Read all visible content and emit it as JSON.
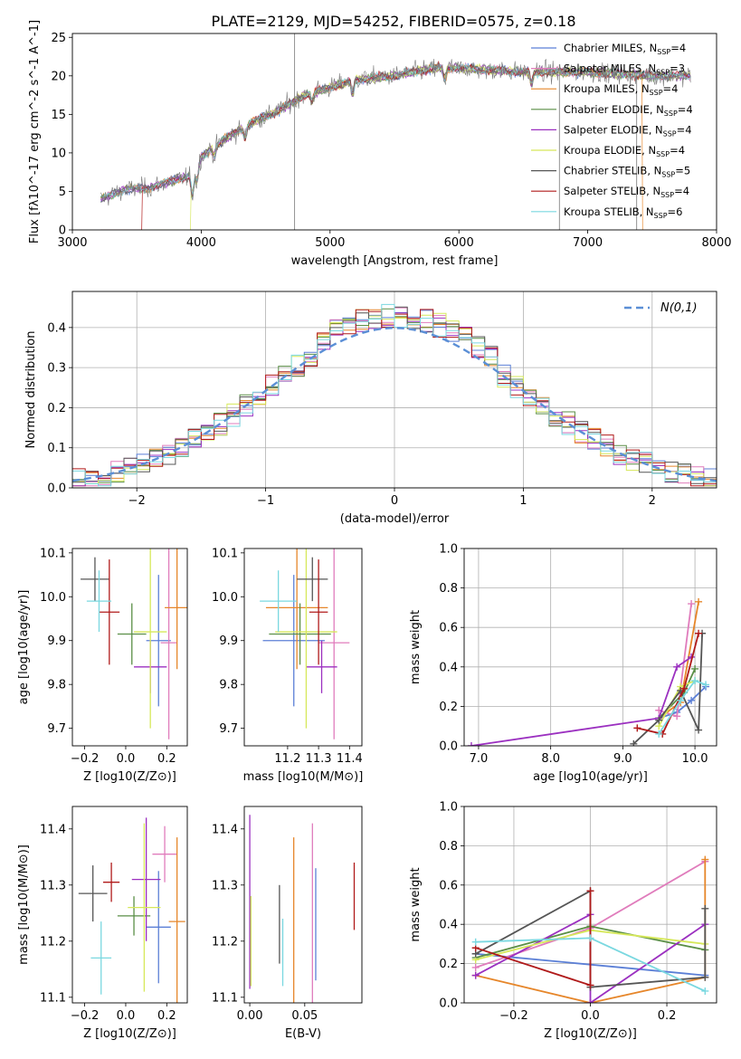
{
  "figure_title": "PLATE=2129, MJD=54252, FIBERID=0575, z=0.18",
  "colors": {
    "Chabrier MILES": "#5b7fd6",
    "Salpeter MILES": "#e07cbc",
    "Kroupa MILES": "#e6862a",
    "Chabrier ELODIE": "#5a8e46",
    "Salpeter ELODIE": "#9b30c0",
    "Kroupa ELODIE": "#d6e85a",
    "Chabrier STELIB": "#555555",
    "Salpeter STELIB": "#b01a1a",
    "Kroupa STELIB": "#7ad8e0"
  },
  "chart_data": [
    {
      "id": "spectrum",
      "type": "line",
      "xlabel": "wavelength [Angstrom, rest frame]",
      "ylabel": "Flux [fλ10^-17 erg cm^-2 s^-1 A^-1]",
      "xlim": [
        3000,
        8000
      ],
      "ylim": [
        0,
        25.5
      ],
      "xticks": [
        "3000",
        "4000",
        "5000",
        "6000",
        "7000",
        "8000"
      ],
      "yticks": [
        "0",
        "5",
        "10",
        "15",
        "20",
        "25"
      ],
      "legend_position": "right",
      "legend": [
        {
          "name": "Chabrier MILES",
          "nssp": "4"
        },
        {
          "name": "Salpeter MILES",
          "nssp": "3"
        },
        {
          "name": "Kroupa MILES",
          "nssp": "4"
        },
        {
          "name": "Chabrier ELODIE",
          "nssp": "4"
        },
        {
          "name": "Salpeter ELODIE",
          "nssp": "4"
        },
        {
          "name": "Kroupa ELODIE",
          "nssp": "4"
        },
        {
          "name": "Chabrier STELIB",
          "nssp": "5"
        },
        {
          "name": "Salpeter STELIB",
          "nssp": "4"
        },
        {
          "name": "Kroupa STELIB",
          "nssp": "6"
        }
      ],
      "data_range": [
        3220,
        7800
      ],
      "continuum": [
        [
          3220,
          4.0
        ],
        [
          3400,
          5.2
        ],
        [
          3600,
          5.5
        ],
        [
          3800,
          6.5
        ],
        [
          3930,
          7.0
        ],
        [
          4000,
          9.5
        ],
        [
          4200,
          12.0
        ],
        [
          4400,
          14.0
        ],
        [
          4600,
          15.5
        ],
        [
          4800,
          17.5
        ],
        [
          5000,
          18.5
        ],
        [
          5200,
          19.5
        ],
        [
          5500,
          20.0
        ],
        [
          5800,
          21.0
        ],
        [
          6000,
          21.0
        ],
        [
          6500,
          20.5
        ],
        [
          7000,
          20.5
        ],
        [
          7500,
          20.0
        ],
        [
          7800,
          20.0
        ]
      ],
      "model_edges": [
        {
          "name": "Salpeter STELIB",
          "from": 3540
        },
        {
          "name": "Kroupa ELODIE",
          "from": 3920
        },
        {
          "name": "Kroupa MILES",
          "to": 7420
        }
      ],
      "spikes": [
        [
          4725,
          0,
          25.5
        ],
        [
          6780,
          0,
          21.5
        ],
        [
          7380,
          0,
          20.0
        ]
      ]
    },
    {
      "id": "residuals",
      "type": "histogram",
      "xlabel": "(data-model)/error",
      "ylabel": "Normed distribution",
      "xlim": [
        -2.5,
        2.5
      ],
      "ylim": [
        0,
        0.49
      ],
      "xticks": [
        "−2",
        "−1",
        "0",
        "1",
        "2"
      ],
      "yticks": [
        "0.0",
        "0.1",
        "0.2",
        "0.3",
        "0.4"
      ],
      "grid": true,
      "reference": {
        "name": "N(0,1)",
        "style": "dashed",
        "color": "#5b8fd6"
      },
      "bin_width": 0.1,
      "legend_position": "top-right"
    },
    {
      "id": "age_vs_z",
      "type": "scatter",
      "xlabel": "Z [log10(Z/Z⊙)]",
      "ylabel": "age  [log10(age/yr)]",
      "xlim": [
        -0.26,
        0.3
      ],
      "ylim": [
        9.66,
        10.11
      ],
      "xticks": [
        -0.2,
        0.0,
        0.2
      ],
      "yticks": [
        9.7,
        9.8,
        9.9,
        10.0,
        10.1
      ],
      "points": [
        {
          "model": "Chabrier MILES",
          "x": 0.16,
          "xerr": 0.06,
          "y": 9.9,
          "yerr": 0.15
        },
        {
          "model": "Salpeter MILES",
          "x": 0.21,
          "xerr": 0.04,
          "y": 9.895,
          "yerr": 0.22
        },
        {
          "model": "Kroupa MILES",
          "x": 0.25,
          "xerr": 0.06,
          "y": 9.975,
          "yerr": 0.14
        },
        {
          "model": "Chabrier ELODIE",
          "x": 0.03,
          "xerr": 0.07,
          "y": 9.915,
          "yerr": 0.07
        },
        {
          "model": "Salpeter ELODIE",
          "x": 0.12,
          "xerr": 0.08,
          "y": 9.84,
          "yerr": 0.06
        },
        {
          "model": "Kroupa ELODIE",
          "x": 0.12,
          "xerr": 0.08,
          "y": 9.92,
          "yerr": 0.22
        },
        {
          "model": "Chabrier STELIB",
          "x": -0.15,
          "xerr": 0.07,
          "y": 10.04,
          "yerr": 0.05
        },
        {
          "model": "Salpeter STELIB",
          "x": -0.08,
          "xerr": 0.05,
          "y": 9.965,
          "yerr": 0.12
        },
        {
          "model": "Kroupa STELIB",
          "x": -0.13,
          "xerr": 0.06,
          "y": 9.99,
          "yerr": 0.07
        }
      ]
    },
    {
      "id": "age_vs_mass",
      "type": "scatter",
      "xlabel": "mass [log10(M/M⊙)]",
      "ylabel": "",
      "xlim": [
        11.06,
        11.44
      ],
      "ylim": [
        9.66,
        10.11
      ],
      "xticks": [
        11.2,
        11.3,
        11.4
      ],
      "yticks": [
        9.7,
        9.8,
        9.9,
        10.0,
        10.1
      ],
      "points": [
        {
          "model": "Chabrier MILES",
          "x": 11.22,
          "xerr": 0.1,
          "y": 9.9,
          "yerr": 0.15
        },
        {
          "model": "Salpeter MILES",
          "x": 11.35,
          "xerr": 0.05,
          "y": 9.895,
          "yerr": 0.22
        },
        {
          "model": "Kroupa MILES",
          "x": 11.23,
          "xerr": 0.1,
          "y": 9.975,
          "yerr": 0.14
        },
        {
          "model": "Chabrier ELODIE",
          "x": 11.24,
          "xerr": 0.1,
          "y": 9.915,
          "yerr": 0.07
        },
        {
          "model": "Salpeter ELODIE",
          "x": 11.31,
          "xerr": 0.05,
          "y": 9.84,
          "yerr": 0.06
        },
        {
          "model": "Kroupa ELODIE",
          "x": 11.26,
          "xerr": 0.1,
          "y": 9.92,
          "yerr": 0.22
        },
        {
          "model": "Chabrier STELIB",
          "x": 11.28,
          "xerr": 0.05,
          "y": 10.04,
          "yerr": 0.05
        },
        {
          "model": "Salpeter STELIB",
          "x": 11.3,
          "xerr": 0.03,
          "y": 9.965,
          "yerr": 0.12
        },
        {
          "model": "Kroupa STELIB",
          "x": 11.17,
          "xerr": 0.06,
          "y": 9.99,
          "yerr": 0.07
        }
      ]
    },
    {
      "id": "weight_vs_age",
      "type": "line",
      "xlabel": "age  [log10(age/yr)]",
      "ylabel": "mass weight",
      "xlim": [
        6.8,
        10.3
      ],
      "ylim": [
        0,
        1.0
      ],
      "xticks": [
        7,
        8,
        9,
        10
      ],
      "yticks": [
        0.0,
        0.2,
        0.4,
        0.6,
        0.8,
        1.0
      ],
      "grid": true,
      "series": [
        {
          "model": "Chabrier MILES",
          "x": [
            9.5,
            9.75,
            9.95,
            10.15
          ],
          "y": [
            0.14,
            0.17,
            0.23,
            0.3
          ]
        },
        {
          "model": "Salpeter MILES",
          "x": [
            9.5,
            9.75,
            9.95
          ],
          "y": [
            0.18,
            0.15,
            0.72
          ]
        },
        {
          "model": "Kroupa MILES",
          "x": [
            9.5,
            9.8,
            10.05
          ],
          "y": [
            0.14,
            0.22,
            0.73
          ]
        },
        {
          "model": "Chabrier ELODIE",
          "x": [
            9.5,
            9.85,
            10.0
          ],
          "y": [
            0.14,
            0.27,
            0.39
          ]
        },
        {
          "model": "Salpeter ELODIE",
          "x": [
            6.9,
            9.5,
            9.75,
            9.95
          ],
          "y": [
            0.0,
            0.14,
            0.4,
            0.45
          ]
        },
        {
          "model": "Kroupa ELODIE",
          "x": [
            9.5,
            9.8,
            10.0
          ],
          "y": [
            0.1,
            0.3,
            0.33
          ]
        },
        {
          "model": "Chabrier STELIB",
          "x": [
            9.15,
            9.5,
            9.8,
            10.05,
            10.1
          ],
          "y": [
            0.01,
            0.13,
            0.28,
            0.08,
            0.57
          ]
        },
        {
          "model": "Salpeter STELIB",
          "x": [
            9.2,
            9.55,
            9.85,
            10.05
          ],
          "y": [
            0.09,
            0.06,
            0.29,
            0.57
          ]
        },
        {
          "model": "Kroupa STELIB",
          "x": [
            9.5,
            9.8,
            10.0,
            10.15
          ],
          "y": [
            0.06,
            0.23,
            0.33,
            0.31
          ]
        }
      ]
    },
    {
      "id": "mass_vs_z",
      "type": "scatter",
      "xlabel": "Z [log10(Z/Z⊙)]",
      "ylabel": "mass [log10(M/M⊙)]",
      "xlim": [
        -0.26,
        0.3
      ],
      "ylim": [
        11.09,
        11.44
      ],
      "xticks": [
        -0.2,
        0.0,
        0.2
      ],
      "yticks": [
        11.1,
        11.2,
        11.3,
        11.4
      ],
      "points": [
        {
          "model": "Chabrier MILES",
          "x": 0.16,
          "xerr": 0.06,
          "y": 11.225,
          "yerr": 0.1
        },
        {
          "model": "Salpeter MILES",
          "x": 0.19,
          "xerr": 0.06,
          "y": 11.355,
          "yerr": 0.05
        },
        {
          "model": "Kroupa MILES",
          "x": 0.25,
          "xerr": 0.04,
          "y": 11.235,
          "yerr": 0.15
        },
        {
          "model": "Chabrier ELODIE",
          "x": 0.04,
          "xerr": 0.08,
          "y": 11.245,
          "yerr": 0.035
        },
        {
          "model": "Salpeter ELODIE",
          "x": 0.1,
          "xerr": 0.07,
          "y": 11.31,
          "yerr": 0.11
        },
        {
          "model": "Kroupa ELODIE",
          "x": 0.09,
          "xerr": 0.08,
          "y": 11.26,
          "yerr": 0.15
        },
        {
          "model": "Chabrier STELIB",
          "x": -0.16,
          "xerr": 0.07,
          "y": 11.285,
          "yerr": 0.05
        },
        {
          "model": "Salpeter STELIB",
          "x": -0.07,
          "xerr": 0.04,
          "y": 11.305,
          "yerr": 0.035
        },
        {
          "model": "Kroupa STELIB",
          "x": -0.12,
          "xerr": 0.05,
          "y": 11.17,
          "yerr": 0.065
        }
      ]
    },
    {
      "id": "mass_vs_ebv",
      "type": "scatter",
      "xlabel": "E(B-V)",
      "ylabel": "",
      "xlim": [
        -0.005,
        0.102
      ],
      "ylim": [
        11.09,
        11.44
      ],
      "xticks": [
        "0.00",
        "0.05"
      ],
      "yticks": [
        11.1,
        11.2,
        11.3,
        11.4
      ],
      "points": [
        {
          "model": "Chabrier MILES",
          "x": 0.06,
          "xerr": 0,
          "y": 11.23,
          "yerr": 0.1
        },
        {
          "model": "Salpeter MILES",
          "x": 0.057,
          "xerr": 0,
          "y": 11.25,
          "yerr": 0.16
        },
        {
          "model": "Kroupa MILES",
          "x": 0.04,
          "xerr": 0,
          "y": 11.23,
          "yerr": 0.155
        },
        {
          "model": "Chabrier ELODIE",
          "x": 0.001,
          "xerr": 0,
          "y": 11.2,
          "yerr": 0.08
        },
        {
          "model": "Salpeter ELODIE",
          "x": 0.0,
          "xerr": 0,
          "y": 11.27,
          "yerr": 0.155
        },
        {
          "model": "Kroupa ELODIE",
          "x": 0.001,
          "xerr": 0,
          "y": 11.2,
          "yerr": 0.08
        },
        {
          "model": "Chabrier STELIB",
          "x": 0.027,
          "xerr": 0,
          "y": 11.23,
          "yerr": 0.07
        },
        {
          "model": "Salpeter STELIB",
          "x": 0.095,
          "xerr": 0,
          "y": 11.28,
          "yerr": 0.06
        },
        {
          "model": "Kroupa STELIB",
          "x": 0.03,
          "xerr": 0,
          "y": 11.18,
          "yerr": 0.06
        }
      ]
    },
    {
      "id": "weight_vs_z",
      "type": "line",
      "xlabel": "Z [log10(Z/Z⊙)]",
      "ylabel": "mass weight",
      "xlim": [
        -0.33,
        0.33
      ],
      "ylim": [
        0,
        1.0
      ],
      "xticks": [
        -0.2,
        0.0,
        0.2
      ],
      "yticks": [
        0.0,
        0.2,
        0.4,
        0.6,
        0.8,
        1.0
      ],
      "grid": true,
      "series": [
        {
          "model": "Chabrier MILES",
          "x": [
            -0.3,
            0.3
          ],
          "y": [
            0.25,
            0.14
          ]
        },
        {
          "model": "Salpeter MILES",
          "x": [
            -0.3,
            0.0,
            0.3
          ],
          "y": [
            0.18,
            0.38,
            0.72
          ]
        },
        {
          "model": "Kroupa MILES",
          "x": [
            -0.3,
            0.0,
            0.3,
            0.3
          ],
          "y": [
            0.14,
            0.0,
            0.13,
            0.73
          ]
        },
        {
          "model": "Chabrier ELODIE",
          "x": [
            -0.3,
            0.0,
            0.3
          ],
          "y": [
            0.23,
            0.39,
            0.27
          ]
        },
        {
          "model": "Salpeter ELODIE",
          "x": [
            -0.3,
            0.0,
            0.0,
            0.3
          ],
          "y": [
            0.14,
            0.45,
            0.0,
            0.4
          ]
        },
        {
          "model": "Kroupa ELODIE",
          "x": [
            -0.3,
            0.0,
            0.3
          ],
          "y": [
            0.22,
            0.37,
            0.3
          ]
        },
        {
          "model": "Chabrier STELIB",
          "x": [
            -0.3,
            0.0,
            0.0,
            0.3,
            0.3
          ],
          "y": [
            0.25,
            0.57,
            0.08,
            0.13,
            0.48
          ]
        },
        {
          "model": "Salpeter STELIB",
          "x": [
            -0.3,
            0.0,
            0.0
          ],
          "y": [
            0.28,
            0.09,
            0.57
          ]
        },
        {
          "model": "Kroupa STELIB",
          "x": [
            -0.3,
            0.0,
            0.3
          ],
          "y": [
            0.31,
            0.33,
            0.06
          ]
        }
      ]
    }
  ]
}
